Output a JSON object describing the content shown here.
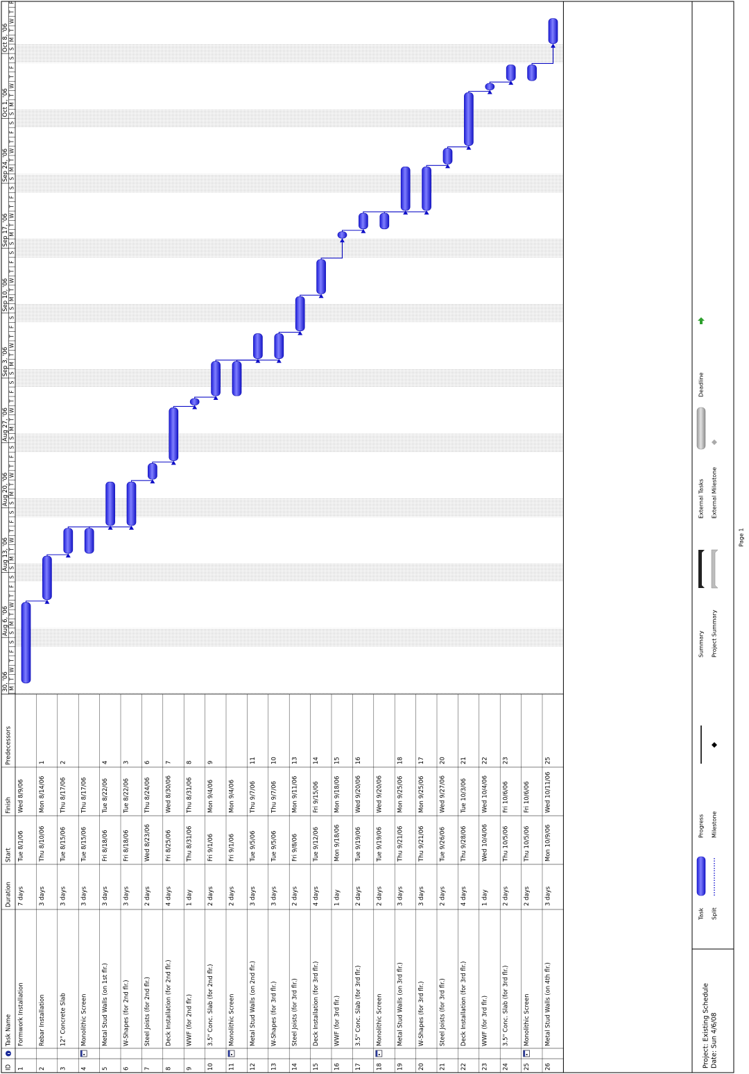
{
  "table": {
    "columns": [
      "ID",
      "Task Name",
      "Duration",
      "Start",
      "Finish",
      "Predecessors"
    ],
    "rows": [
      {
        "id": "1",
        "name": "Formwork Installation",
        "duration": "7 days",
        "start": "Tue 8/1/06",
        "finish": "Wed 8/9/06",
        "predecessors": null,
        "indicator": false
      },
      {
        "id": "2",
        "name": "Rebar Installation",
        "duration": "3 days",
        "start": "Thu 8/10/06",
        "finish": "Mon 8/14/06",
        "predecessors": "1",
        "indicator": false
      },
      {
        "id": "3",
        "name": "12\" Concrete Slab",
        "duration": "3 days",
        "start": "Tue 8/15/06",
        "finish": "Thu 8/17/06",
        "predecessors": "2",
        "indicator": false
      },
      {
        "id": "4",
        "name": "Monolithic Screen",
        "duration": "3 days",
        "start": "Tue 8/15/06",
        "finish": "Thu 8/17/06",
        "predecessors": null,
        "indicator": true
      },
      {
        "id": "5",
        "name": "Metal Stud Walls (on 1st flr.)",
        "duration": "3 days",
        "start": "Fri 8/18/06",
        "finish": "Tue 8/22/06",
        "predecessors": "4",
        "indicator": false
      },
      {
        "id": "6",
        "name": "W-Shapes (for 2nd flr.)",
        "duration": "3 days",
        "start": "Fri 8/18/06",
        "finish": "Tue 8/22/06",
        "predecessors": "3",
        "indicator": false
      },
      {
        "id": "7",
        "name": "Steel Joists (for 2nd flr.)",
        "duration": "2 days",
        "start": "Wed 8/23/06",
        "finish": "Thu 8/24/06",
        "predecessors": "6",
        "indicator": false
      },
      {
        "id": "8",
        "name": "Deck Installation (for 2nd flr.)",
        "duration": "4 days",
        "start": "Fri 8/25/06",
        "finish": "Wed 8/30/06",
        "predecessors": "7",
        "indicator": false
      },
      {
        "id": "9",
        "name": "WWF (for 2nd flr.)",
        "duration": "1 day",
        "start": "Thu 8/31/06",
        "finish": "Thu 8/31/06",
        "predecessors": "8",
        "indicator": false
      },
      {
        "id": "10",
        "name": "3.5\" Conc. Slab (for 2nd flr.)",
        "duration": "2 days",
        "start": "Fri 9/1/06",
        "finish": "Mon 9/4/06",
        "predecessors": "9",
        "indicator": false
      },
      {
        "id": "11",
        "name": "Monolithic Screen",
        "duration": "2 days",
        "start": "Fri 9/1/06",
        "finish": "Mon 9/4/06",
        "predecessors": null,
        "indicator": true
      },
      {
        "id": "12",
        "name": "Metal Stud Walls (on 2nd flr.)",
        "duration": "3 days",
        "start": "Tue 9/5/06",
        "finish": "Thu 9/7/06",
        "predecessors": "11",
        "indicator": false
      },
      {
        "id": "13",
        "name": "W-Shapes (for 3rd flr.)",
        "duration": "3 days",
        "start": "Tue 9/5/06",
        "finish": "Thu 9/7/06",
        "predecessors": "10",
        "indicator": false
      },
      {
        "id": "14",
        "name": "Steel Joists (for 3rd flr.)",
        "duration": "2 days",
        "start": "Fri 9/8/06",
        "finish": "Mon 9/11/06",
        "predecessors": "13",
        "indicator": false
      },
      {
        "id": "15",
        "name": "Deck Installation (for 3rd flr.)",
        "duration": "4 days",
        "start": "Tue 9/12/06",
        "finish": "Fri 9/15/06",
        "predecessors": "14",
        "indicator": false
      },
      {
        "id": "16",
        "name": "WWF (for 3rd flr.)",
        "duration": "1 day",
        "start": "Mon 9/18/06",
        "finish": "Mon 9/18/06",
        "predecessors": "15",
        "indicator": false
      },
      {
        "id": "17",
        "name": "3.5\" Conc. Slab (for 3rd flr.)",
        "duration": "2 days",
        "start": "Tue 9/19/06",
        "finish": "Wed 9/20/06",
        "predecessors": "16",
        "indicator": false
      },
      {
        "id": "18",
        "name": "Monolithic Screen",
        "duration": "2 days",
        "start": "Tue 9/19/06",
        "finish": "Wed 9/20/06",
        "predecessors": null,
        "indicator": true
      },
      {
        "id": "19",
        "name": "Metal Stud Walls (on 3rd flr.)",
        "duration": "3 days",
        "start": "Thu 9/21/06",
        "finish": "Mon 9/25/06",
        "predecessors": "18",
        "indicator": false
      },
      {
        "id": "20",
        "name": "W-Shapes (for 3rd flr.)",
        "duration": "3 days",
        "start": "Thu 9/21/06",
        "finish": "Mon 9/25/06",
        "predecessors": "17",
        "indicator": false
      },
      {
        "id": "21",
        "name": "Steel Joists (for 3rd flr.)",
        "duration": "2 days",
        "start": "Tue 9/26/06",
        "finish": "Wed 9/27/06",
        "predecessors": "20",
        "indicator": false
      },
      {
        "id": "22",
        "name": "Deck Installation (for 3rd flr.)",
        "duration": "4 days",
        "start": "Thu 9/28/06",
        "finish": "Tue 10/3/06",
        "predecessors": "21",
        "indicator": false
      },
      {
        "id": "23",
        "name": "WWF (for 3rd flr.)",
        "duration": "1 day",
        "start": "Wed 10/4/06",
        "finish": "Wed 10/4/06",
        "predecessors": "22",
        "indicator": false
      },
      {
        "id": "24",
        "name": "3.5\" Conc. Slab (for 3rd flr.)",
        "duration": "2 days",
        "start": "Thu 10/5/06",
        "finish": "Fri 10/6/06",
        "predecessors": "23",
        "indicator": false
      },
      {
        "id": "25",
        "name": "Monolithic Screen",
        "duration": "2 days",
        "start": "Thu 10/5/06",
        "finish": "Fri 10/6/06",
        "predecessors": null,
        "indicator": true
      },
      {
        "id": "26",
        "name": "Metal Stud Walls (on 4th flr.)",
        "duration": "3 days",
        "start": "Mon 10/9/06",
        "finish": "Wed 10/11/06",
        "predecessors": "25",
        "indicator": false
      }
    ]
  },
  "timescale": {
    "weeks": [
      "Jul 30, '06",
      "Aug 6, '06",
      "Aug 13, '06",
      "Aug 20, '06",
      "Aug 27, '06",
      "Sep 3, '06",
      "Sep 10, '06",
      "Sep 17, '06",
      "Sep 24, '06",
      "Oct 1, '06",
      "Oct 8, '06"
    ],
    "days": [
      "S",
      "M",
      "T",
      "W",
      "T",
      "F",
      "S"
    ]
  },
  "legend": {
    "project": "Project: Existing Schedule",
    "date": "Date: Sun 4/6/08",
    "items": [
      "Task",
      "Split",
      "Progress",
      "Milestone",
      "Summary",
      "Project Summary",
      "External Tasks",
      "External Milestone",
      "Deadline"
    ]
  },
  "footer": "Page 1"
}
